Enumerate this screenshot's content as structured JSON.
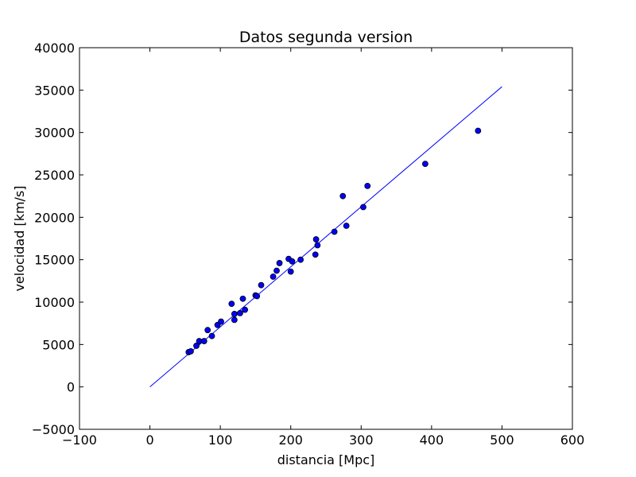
{
  "chart_data": {
    "type": "scatter",
    "title": "Datos segunda version",
    "xlabel": "distancia [Mpc]",
    "ylabel": "velocidad [km/s]",
    "xlim": [
      -100,
      600
    ],
    "ylim": [
      -5000,
      40000
    ],
    "xticks": [
      -100,
      0,
      100,
      200,
      300,
      400,
      500,
      600
    ],
    "yticks": [
      -5000,
      0,
      5000,
      10000,
      15000,
      20000,
      25000,
      30000,
      35000,
      40000
    ],
    "xtick_labels": [
      "−100",
      "0",
      "100",
      "200",
      "300",
      "400",
      "500",
      "600"
    ],
    "ytick_labels": [
      "−5000",
      "0",
      "5000",
      "10000",
      "15000",
      "20000",
      "25000",
      "30000",
      "35000",
      "40000"
    ],
    "grid": false,
    "point_color": "#0000ff",
    "line_color": "#0000ff",
    "fit_line": {
      "x": [
        0,
        500
      ],
      "y": [
        0,
        35400
      ]
    },
    "series": [
      {
        "points": [
          [
            55,
            4100
          ],
          [
            58,
            4200
          ],
          [
            66,
            4850
          ],
          [
            70,
            5400
          ],
          [
            77,
            5400
          ],
          [
            82,
            6700
          ],
          [
            88,
            6000
          ],
          [
            96,
            7300
          ],
          [
            101,
            7700
          ],
          [
            116,
            9800
          ],
          [
            120,
            7900
          ],
          [
            120,
            8600
          ],
          [
            128,
            8700
          ],
          [
            132,
            10400
          ],
          [
            135,
            9100
          ],
          [
            150,
            10800
          ],
          [
            152,
            10700
          ],
          [
            158,
            12000
          ],
          [
            175,
            13000
          ],
          [
            180,
            13700
          ],
          [
            184,
            14600
          ],
          [
            197,
            15100
          ],
          [
            200,
            13600
          ],
          [
            202,
            14800
          ],
          [
            214,
            15000
          ],
          [
            235,
            15600
          ],
          [
            236,
            17400
          ],
          [
            238,
            16700
          ],
          [
            262,
            18300
          ],
          [
            274,
            22500
          ],
          [
            279,
            19000
          ],
          [
            303,
            21200
          ],
          [
            309,
            23700
          ],
          [
            391,
            26300
          ],
          [
            466,
            30200
          ]
        ]
      }
    ]
  }
}
